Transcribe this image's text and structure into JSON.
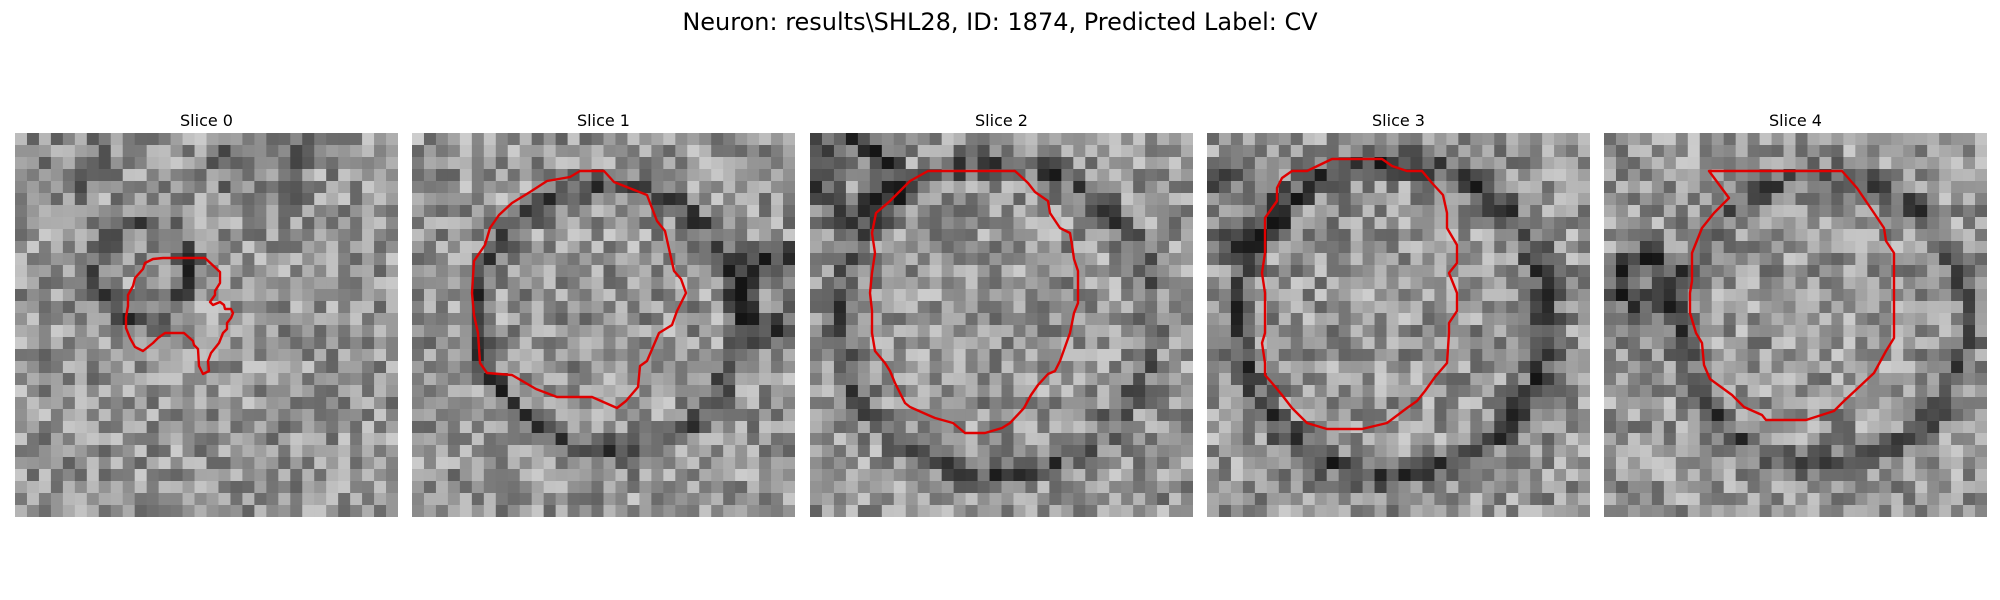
{
  "figure": {
    "title": "Neuron: results\\SHL28, ID: 1874, Predicted Label: CV",
    "contour_color": "#e00000"
  },
  "panels": [
    {
      "title": "Slice 0"
    },
    {
      "title": "Slice 1"
    },
    {
      "title": "Slice 2"
    },
    {
      "title": "Slice 3"
    },
    {
      "title": "Slice 4"
    }
  ]
}
